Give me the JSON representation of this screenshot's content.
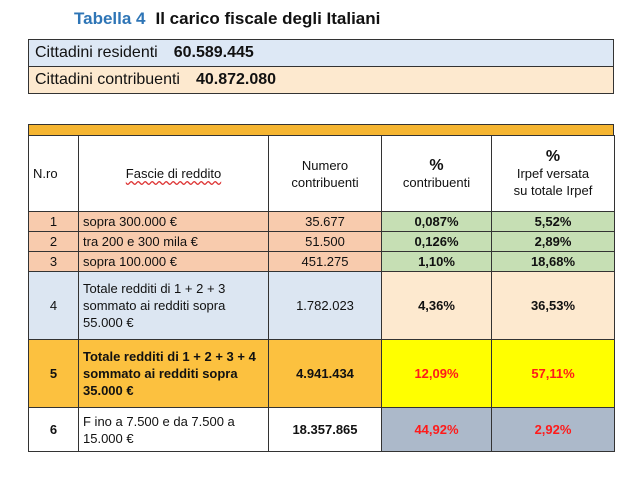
{
  "title": {
    "label": "Tabella 4",
    "text": "Il carico fiscale degli Italiani"
  },
  "summary": [
    {
      "label": "Cittadini residenti",
      "value": "60.589.445"
    },
    {
      "label": "Cittadini contribuenti",
      "value": "40.872.080"
    }
  ],
  "table": {
    "headers": {
      "nro": "N.ro",
      "fasce": "Fascie di reddito",
      "numero_line1": "Numero",
      "numero_line2": "contribuenti",
      "pct1_symbol": "%",
      "pct1_label": "contribuenti",
      "pct2_symbol": "%",
      "pct2_line1": "Irpef versata",
      "pct2_line2": "su totale Irpef"
    },
    "rows": [
      {
        "nro": "1",
        "fascia": "sopra 300.000  €",
        "numero": "35.677",
        "pct_contribuenti": "0,087%",
        "pct_irpef": "5,52%"
      },
      {
        "nro": "2",
        "fascia": "tra 200 e 300 mila  €",
        "numero": "51.500",
        "pct_contribuenti": "0,126%",
        "pct_irpef": "2,89%"
      },
      {
        "nro": "3",
        "fascia": "sopra 100.000  €",
        "numero": "451.275",
        "pct_contribuenti": "1,10%",
        "pct_irpef": "18,68%"
      },
      {
        "nro": "4",
        "fascia": "Totale redditi di 1 + 2 + 3 sommato ai redditi sopra 55.000  €",
        "numero": "1.782.023",
        "pct_contribuenti": "4,36%",
        "pct_irpef": "36,53%"
      },
      {
        "nro": "5",
        "fascia": "Totale redditi  di 1 + 2 + 3 + 4 sommato ai redditi sopra 35.000  €",
        "numero": "4.941.434",
        "pct_contribuenti": "12,09%",
        "pct_irpef": "57,11%"
      },
      {
        "nro": "6",
        "fascia": "F ino a 7.500 e da 7.500 a 15.000  €",
        "numero": "18.357.865",
        "pct_contribuenti": "44,92%",
        "pct_irpef": "2,92%"
      }
    ]
  },
  "colors": {
    "title_accent": "#2e75b6",
    "orange": "#f5b531",
    "salmon": "#f8cbad",
    "green": "#c6dfb4",
    "light_blue": "#dce6f2",
    "cream": "#fde9cf",
    "yellow": "#ffff00",
    "grey_blue": "#acb9ca",
    "red_text": "#ff1a1a"
  }
}
